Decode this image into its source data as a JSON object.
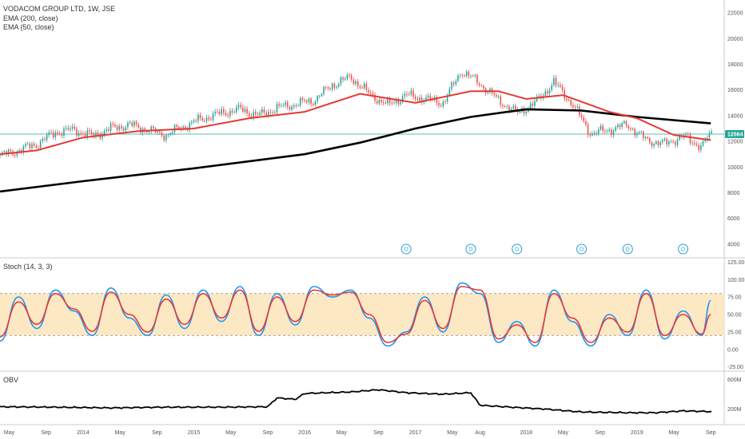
{
  "legend": {
    "title": "VODACOM GROUP LTD, 1W, JSE",
    "ema200": "EMA (200, close)",
    "ema50": "EMA (50, close)",
    "stoch": "Stoch (14, 3, 3)",
    "obv": "OBV"
  },
  "colors": {
    "candle_up": "#26a69a",
    "candle_down": "#ef5350",
    "ema50": "#e53935",
    "ema200": "#000000",
    "stoch_k": "#2196f3",
    "stoch_d": "#e53935",
    "stoch_band": "#fde8c4",
    "obv": "#000000",
    "price_line": "#26a69a",
    "dividend": "#2a9fd6"
  },
  "last_price_label": "12564",
  "dividend_markers": [
    {
      "x": "2016-12",
      "label": "D"
    },
    {
      "x": "2017-07",
      "label": "D"
    },
    {
      "x": "2017-12",
      "label": "D"
    },
    {
      "x": "2018-07",
      "label": "D"
    },
    {
      "x": "2018-12",
      "label": "D"
    },
    {
      "x": "2019-06",
      "label": "D"
    }
  ],
  "x_ticks": [
    "May",
    "Sep",
    "2014",
    "May",
    "Sep",
    "2015",
    "May",
    "Sep",
    "2016",
    "May",
    "Sep",
    "2017",
    "May",
    "Aug",
    "2018",
    "May",
    "Sep",
    "2019",
    "May",
    "Sep"
  ],
  "chart_data": [
    {
      "type": "candlestick",
      "title": "VODACOM GROUP LTD, 1W, JSE",
      "ylim": [
        3000,
        23000
      ],
      "y_ticks": [
        "22000",
        "20000",
        "18000",
        "16000",
        "14000",
        "12000",
        "10000",
        "8000",
        "6000",
        "4000"
      ],
      "price_points": [
        [
          "2013-04",
          10900
        ],
        [
          "2013-06",
          11300
        ],
        [
          "2013-08",
          11800
        ],
        [
          "2013-10",
          12700
        ],
        [
          "2013-12",
          12900
        ],
        [
          "2014-02",
          12400
        ],
        [
          "2014-04",
          13000
        ],
        [
          "2014-06",
          13300
        ],
        [
          "2014-08",
          12900
        ],
        [
          "2014-10",
          12500
        ],
        [
          "2014-12",
          13200
        ],
        [
          "2015-02",
          13800
        ],
        [
          "2015-04",
          14200
        ],
        [
          "2015-06",
          14500
        ],
        [
          "2015-08",
          14000
        ],
        [
          "2015-10",
          14600
        ],
        [
          "2015-12",
          14900
        ],
        [
          "2016-02",
          15200
        ],
        [
          "2016-04",
          16400
        ],
        [
          "2016-06",
          17000
        ],
        [
          "2016-08",
          15700
        ],
        [
          "2016-10",
          14800
        ],
        [
          "2016-12",
          15600
        ],
        [
          "2017-02",
          15300
        ],
        [
          "2017-04",
          15000
        ],
        [
          "2017-06",
          17500
        ],
        [
          "2017-08",
          16500
        ],
        [
          "2017-10",
          15200
        ],
        [
          "2017-12",
          14200
        ],
        [
          "2018-02",
          15000
        ],
        [
          "2018-04",
          16600
        ],
        [
          "2018-06",
          14900
        ],
        [
          "2018-08",
          12600
        ],
        [
          "2018-10",
          12900
        ],
        [
          "2018-12",
          13300
        ],
        [
          "2019-02",
          12100
        ],
        [
          "2019-04",
          11800
        ],
        [
          "2019-06",
          12400
        ],
        [
          "2019-08",
          11600
        ],
        [
          "2019-09",
          12564
        ]
      ],
      "series": [
        {
          "name": "EMA (200, close)",
          "values": [
            [
              "2013-04",
              8100
            ],
            [
              "2014-01",
              8900
            ],
            [
              "2015-01",
              9900
            ],
            [
              "2016-01",
              11000
            ],
            [
              "2016-07",
              11900
            ],
            [
              "2017-01",
              13000
            ],
            [
              "2017-07",
              13900
            ],
            [
              "2018-01",
              14500
            ],
            [
              "2018-07",
              14400
            ],
            [
              "2019-01",
              13900
            ],
            [
              "2019-09",
              13400
            ]
          ]
        },
        {
          "name": "EMA (50, close)",
          "values": [
            [
              "2013-04",
              11000
            ],
            [
              "2013-08",
              11300
            ],
            [
              "2014-01",
              12300
            ],
            [
              "2014-07",
              12800
            ],
            [
              "2015-01",
              13000
            ],
            [
              "2015-07",
              13800
            ],
            [
              "2016-01",
              14300
            ],
            [
              "2016-07",
              15700
            ],
            [
              "2017-01",
              15000
            ],
            [
              "2017-07",
              15900
            ],
            [
              "2017-10",
              15900
            ],
            [
              "2018-01",
              15300
            ],
            [
              "2018-05",
              15600
            ],
            [
              "2018-10",
              14300
            ],
            [
              "2019-01",
              13800
            ],
            [
              "2019-05",
              12500
            ],
            [
              "2019-09",
              12100
            ]
          ]
        }
      ]
    },
    {
      "type": "line",
      "title": "Stoch (14, 3, 3)",
      "ylim": [
        -30,
        130
      ],
      "y_ticks": [
        "125.00",
        "100.00",
        "75.00",
        "50.00",
        "25.00",
        "0.00",
        "-25.00"
      ],
      "bands": [
        20,
        80
      ],
      "series": [
        {
          "name": "%K",
          "values": [
            [
              "2013-04",
              12
            ],
            [
              "2013-06",
              75
            ],
            [
              "2013-08",
              30
            ],
            [
              "2013-10",
              85
            ],
            [
              "2013-12",
              55
            ],
            [
              "2014-02",
              20
            ],
            [
              "2014-04",
              88
            ],
            [
              "2014-06",
              45
            ],
            [
              "2014-08",
              20
            ],
            [
              "2014-10",
              78
            ],
            [
              "2014-12",
              30
            ],
            [
              "2015-02",
              85
            ],
            [
              "2015-04",
              40
            ],
            [
              "2015-06",
              90
            ],
            [
              "2015-08",
              20
            ],
            [
              "2015-10",
              80
            ],
            [
              "2015-12",
              35
            ],
            [
              "2016-02",
              90
            ],
            [
              "2016-04",
              75
            ],
            [
              "2016-06",
              85
            ],
            [
              "2016-08",
              45
            ],
            [
              "2016-10",
              5
            ],
            [
              "2016-12",
              25
            ],
            [
              "2017-02",
              75
            ],
            [
              "2017-04",
              25
            ],
            [
              "2017-06",
              95
            ],
            [
              "2017-08",
              80
            ],
            [
              "2017-10",
              10
            ],
            [
              "2017-12",
              40
            ],
            [
              "2018-02",
              5
            ],
            [
              "2018-04",
              85
            ],
            [
              "2018-06",
              40
            ],
            [
              "2018-08",
              5
            ],
            [
              "2018-10",
              50
            ],
            [
              "2018-12",
              20
            ],
            [
              "2019-02",
              85
            ],
            [
              "2019-04",
              15
            ],
            [
              "2019-06",
              55
            ],
            [
              "2019-08",
              20
            ],
            [
              "2019-09",
              70
            ]
          ]
        },
        {
          "name": "%D",
          "values": [
            [
              "2013-04",
              18
            ],
            [
              "2013-06",
              68
            ],
            [
              "2013-08",
              36
            ],
            [
              "2013-10",
              80
            ],
            [
              "2013-12",
              58
            ],
            [
              "2014-02",
              26
            ],
            [
              "2014-04",
              82
            ],
            [
              "2014-06",
              50
            ],
            [
              "2014-08",
              25
            ],
            [
              "2014-10",
              72
            ],
            [
              "2014-12",
              36
            ],
            [
              "2015-02",
              80
            ],
            [
              "2015-04",
              45
            ],
            [
              "2015-06",
              85
            ],
            [
              "2015-08",
              26
            ],
            [
              "2015-10",
              75
            ],
            [
              "2015-12",
              40
            ],
            [
              "2016-02",
              85
            ],
            [
              "2016-04",
              78
            ],
            [
              "2016-06",
              82
            ],
            [
              "2016-08",
              50
            ],
            [
              "2016-10",
              10
            ],
            [
              "2016-12",
              22
            ],
            [
              "2017-02",
              70
            ],
            [
              "2017-04",
              30
            ],
            [
              "2017-06",
              90
            ],
            [
              "2017-08",
              85
            ],
            [
              "2017-10",
              15
            ],
            [
              "2017-12",
              35
            ],
            [
              "2018-02",
              10
            ],
            [
              "2018-04",
              80
            ],
            [
              "2018-06",
              45
            ],
            [
              "2018-08",
              10
            ],
            [
              "2018-10",
              45
            ],
            [
              "2018-12",
              25
            ],
            [
              "2019-02",
              80
            ],
            [
              "2019-04",
              20
            ],
            [
              "2019-06",
              50
            ],
            [
              "2019-08",
              22
            ],
            [
              "2019-09",
              50
            ]
          ]
        }
      ]
    },
    {
      "type": "line",
      "title": "OBV",
      "ylim": [
        0,
        700
      ],
      "y_ticks": [
        "600M",
        "200M"
      ],
      "series": [
        {
          "name": "OBV",
          "values": [
            [
              "2013-04",
              230
            ],
            [
              "2013-10",
              225
            ],
            [
              "2014-04",
              215
            ],
            [
              "2014-10",
              225
            ],
            [
              "2015-04",
              225
            ],
            [
              "2015-09",
              230
            ],
            [
              "2015-10",
              350
            ],
            [
              "2015-12",
              330
            ],
            [
              "2016-01",
              410
            ],
            [
              "2016-06",
              430
            ],
            [
              "2016-09",
              460
            ],
            [
              "2016-12",
              420
            ],
            [
              "2017-04",
              400
            ],
            [
              "2017-07",
              420
            ],
            [
              "2017-08",
              250
            ],
            [
              "2017-12",
              220
            ],
            [
              "2018-03",
              200
            ],
            [
              "2018-07",
              160
            ],
            [
              "2018-12",
              150
            ],
            [
              "2019-03",
              150
            ],
            [
              "2019-06",
              175
            ],
            [
              "2019-09",
              165
            ]
          ]
        }
      ]
    }
  ]
}
